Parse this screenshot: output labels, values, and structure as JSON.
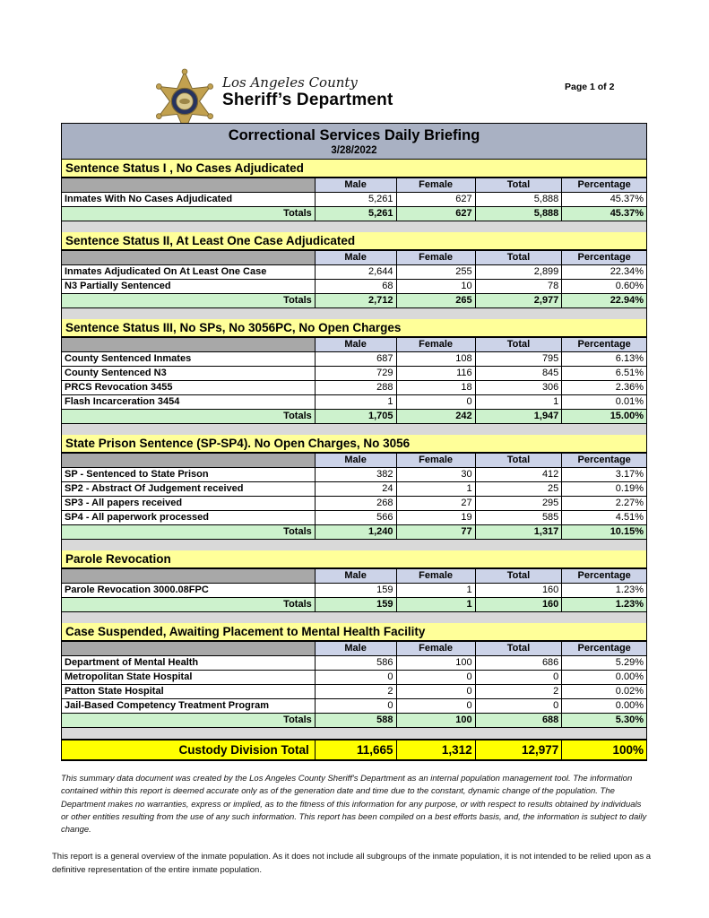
{
  "masthead": {
    "org_line1": "Los Angeles County",
    "org_line2": "Sheriff’s Department",
    "page_label": "Page 1 of 2"
  },
  "title_bar": {
    "title": "Correctional Services Daily Briefing",
    "date": "3/28/2022"
  },
  "columns": [
    "Male",
    "Female",
    "Total",
    "Percentage"
  ],
  "totals_label": "Totals",
  "sections": [
    {
      "title": "Sentence Status I , No Cases Adjudicated",
      "rows": [
        {
          "label": "Inmates With No Cases Adjudicated",
          "values": [
            "5,261",
            "627",
            "5,888",
            "45.37%"
          ]
        }
      ],
      "totals": [
        "5,261",
        "627",
        "5,888",
        "45.37%"
      ]
    },
    {
      "title": "Sentence Status II, At Least One Case Adjudicated",
      "rows": [
        {
          "label": "Inmates Adjudicated On At Least One Case",
          "values": [
            "2,644",
            "255",
            "2,899",
            "22.34%"
          ]
        },
        {
          "label": "N3 Partially Sentenced",
          "values": [
            "68",
            "10",
            "78",
            "0.60%"
          ]
        }
      ],
      "totals": [
        "2,712",
        "265",
        "2,977",
        "22.94%"
      ]
    },
    {
      "title": "Sentence Status III, No SPs, No 3056PC, No Open Charges",
      "rows": [
        {
          "label": "County Sentenced Inmates",
          "values": [
            "687",
            "108",
            "795",
            "6.13%"
          ]
        },
        {
          "label": "County Sentenced N3",
          "values": [
            "729",
            "116",
            "845",
            "6.51%"
          ]
        },
        {
          "label": "PRCS Revocation 3455",
          "values": [
            "288",
            "18",
            "306",
            "2.36%"
          ]
        },
        {
          "label": "Flash Incarceration 3454",
          "values": [
            "1",
            "0",
            "1",
            "0.01%"
          ]
        }
      ],
      "totals": [
        "1,705",
        "242",
        "1,947",
        "15.00%"
      ]
    },
    {
      "title": "State Prison Sentence (SP-SP4). No Open Charges, No 3056",
      "rows": [
        {
          "label": "SP - Sentenced to State Prison",
          "values": [
            "382",
            "30",
            "412",
            "3.17%"
          ]
        },
        {
          "label": "SP2 - Abstract Of Judgement received",
          "values": [
            "24",
            "1",
            "25",
            "0.19%"
          ]
        },
        {
          "label": "SP3 - All papers received",
          "values": [
            "268",
            "27",
            "295",
            "2.27%"
          ]
        },
        {
          "label": "SP4 - All paperwork processed",
          "values": [
            "566",
            "19",
            "585",
            "4.51%"
          ]
        }
      ],
      "totals": [
        "1,240",
        "77",
        "1,317",
        "10.15%"
      ]
    },
    {
      "title": "Parole Revocation",
      "rows": [
        {
          "label": "Parole Revocation 3000.08FPC",
          "values": [
            "159",
            "1",
            "160",
            "1.23%"
          ]
        }
      ],
      "totals": [
        "159",
        "1",
        "160",
        "1.23%"
      ]
    },
    {
      "title": "Case Suspended, Awaiting Placement to Mental Health Facility",
      "rows": [
        {
          "label": "Department of Mental Health",
          "values": [
            "586",
            "100",
            "686",
            "5.29%"
          ]
        },
        {
          "label": "Metropolitan State Hospital",
          "values": [
            "0",
            "0",
            "0",
            "0.00%"
          ]
        },
        {
          "label": "Patton State Hospital",
          "values": [
            "2",
            "0",
            "2",
            "0.02%"
          ]
        },
        {
          "label": "Jail-Based Competency Treatment Program",
          "values": [
            "0",
            "0",
            "0",
            "0.00%"
          ]
        }
      ],
      "totals": [
        "588",
        "100",
        "688",
        "5.30%"
      ]
    }
  ],
  "grand_total": {
    "label": "Custody Division Total",
    "values": [
      "11,665",
      "1,312",
      "12,977",
      "100%"
    ]
  },
  "disclaimer": "This summary data document was created by the Los Angeles County Sheriff's Department as an internal population management tool.  The information contained within this report is deemed accurate only as of the generation date and time due to the constant, dynamic change of the population.  The Department makes no warranties, express or implied, as to the fitness of this information for any purpose, or with respect to results obtained by individuals or other entities resulting from the use of any such information.  This report has been compiled on a best efforts basis, and, the information is subject to daily change.",
  "footnote": "This report is a general overview of the inmate population.  As it does not include all subgroups of the inmate population, it is not intended to be relied upon as a definitive representation of the entire inmate population.",
  "colors": {
    "title_bar_bg": "#a9b1c3",
    "section_header_bg": "#ffff99",
    "column_header_bg": "#ccd3e8",
    "label_header_bg": "#a8a8a8",
    "totals_bg": "#cdf2cd",
    "spacer_bg": "#d9d9d9",
    "grand_total_bg": "#ffff00",
    "badge_gold": "#c2a14f",
    "badge_gold_dark": "#7a6530",
    "badge_navy": "#26335f"
  }
}
